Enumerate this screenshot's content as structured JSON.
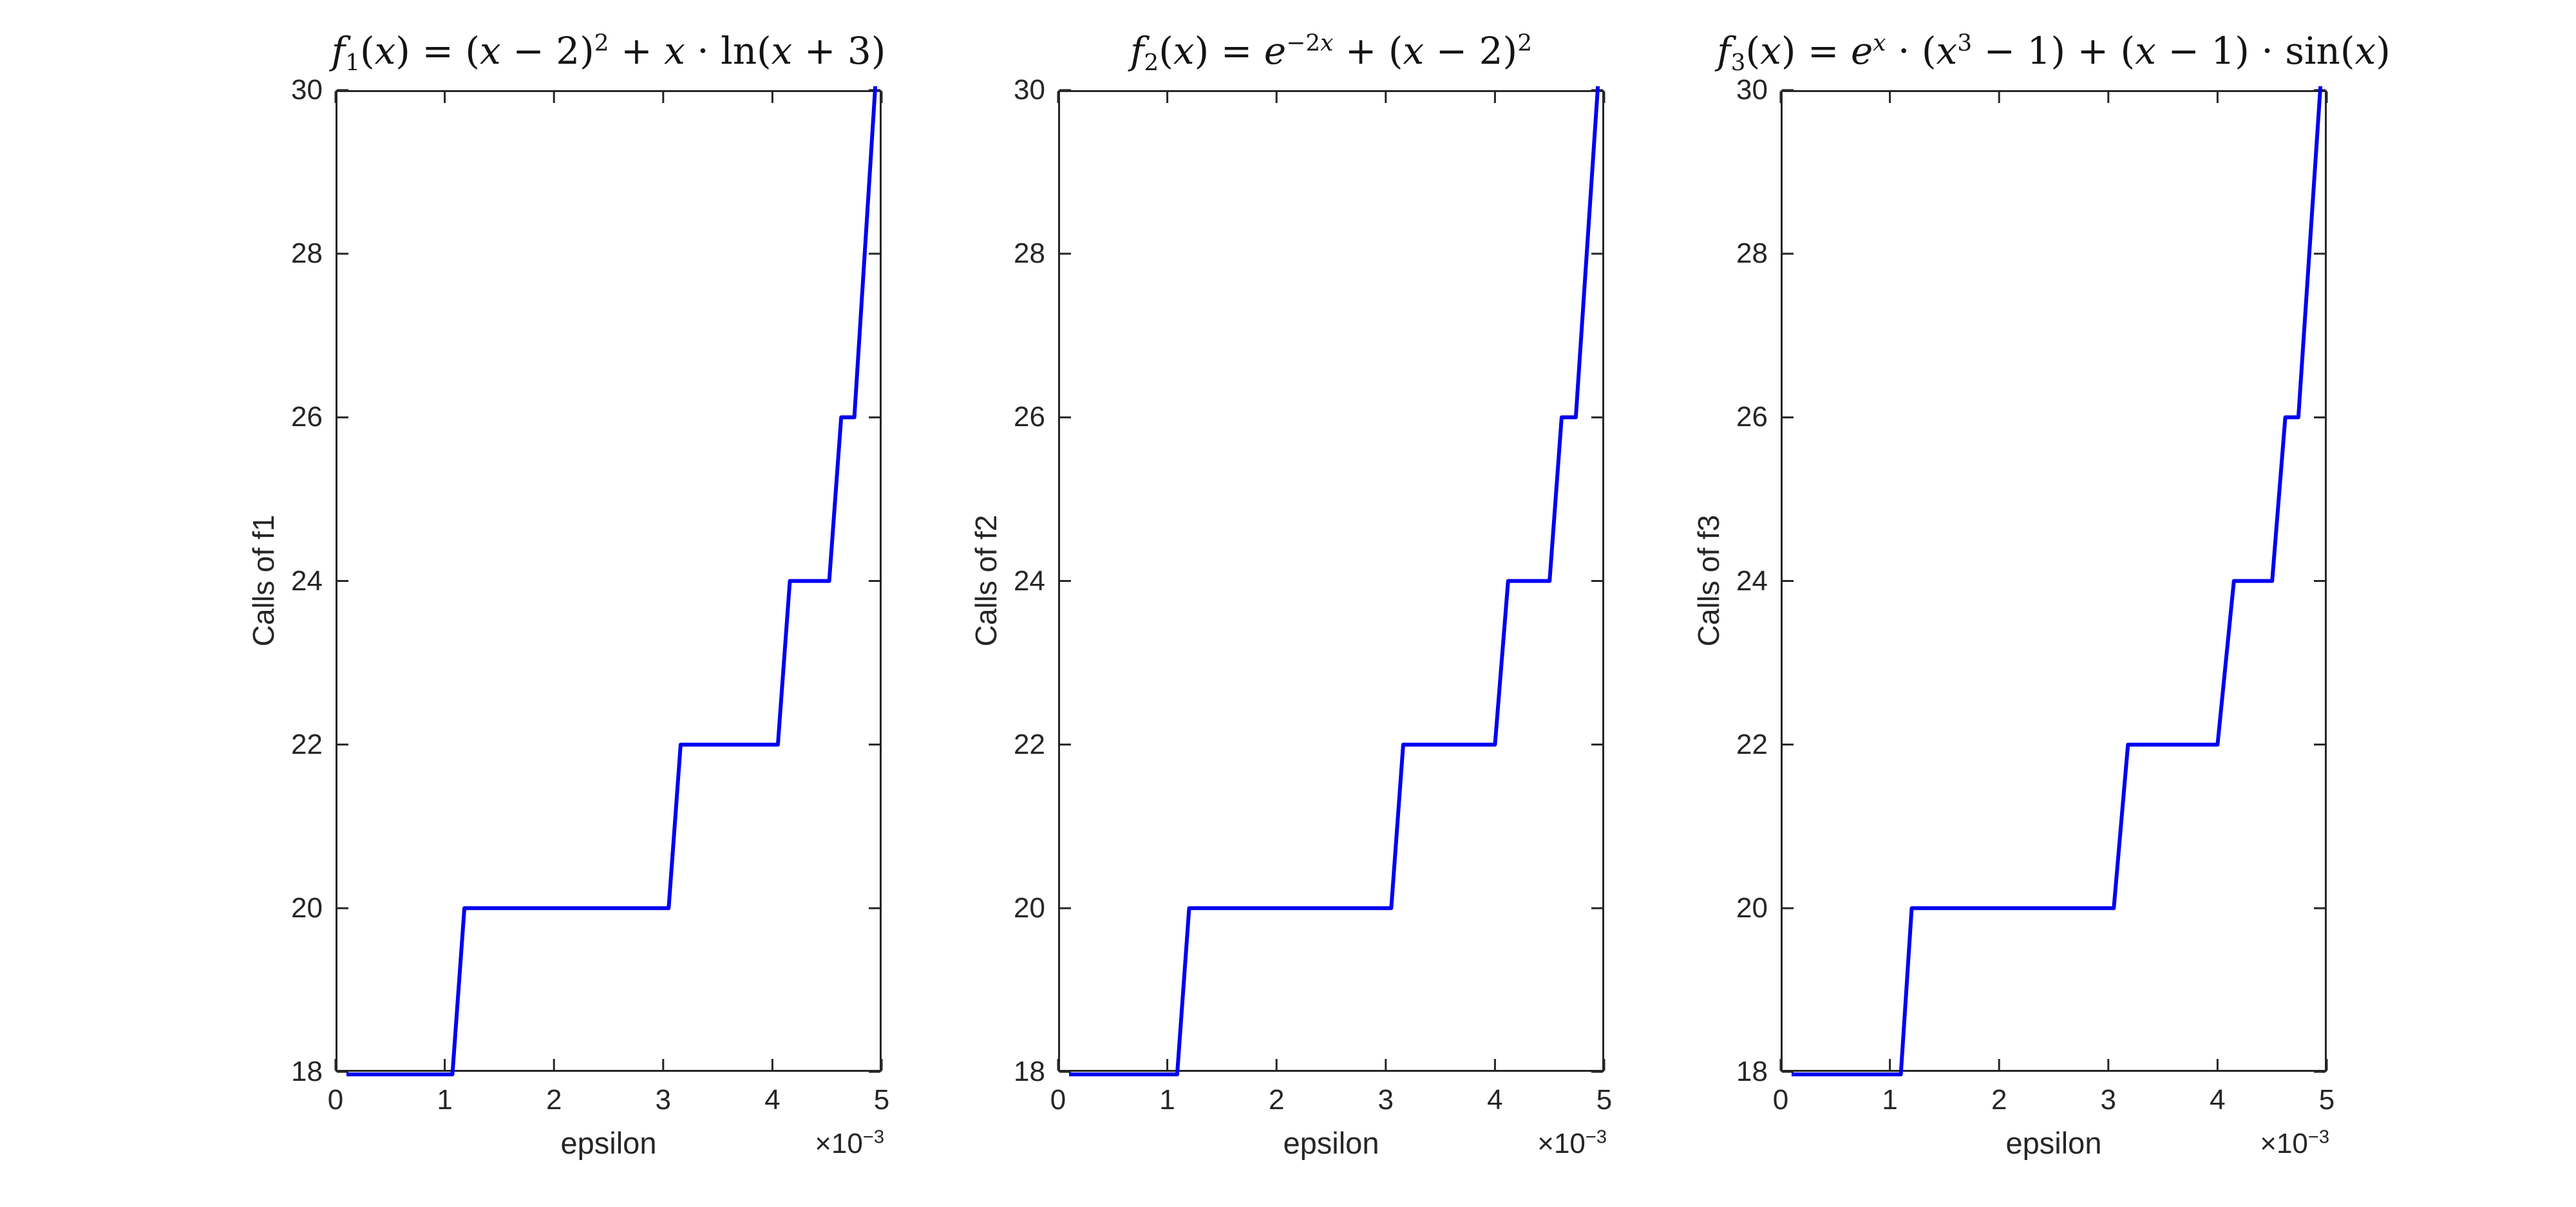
{
  "figure": {
    "background": "#ffffff",
    "axis_color": "#262626",
    "text_color": "#262626",
    "line_color": "#0000f2"
  },
  "chart_data": [
    {
      "type": "line",
      "title": "f_1(x) = (x − 2)^2 + x · ln(x + 3)",
      "xlabel": "epsilon",
      "ylabel": "Calls of f1",
      "x_offset_label": "×10^{−3}",
      "x_unit": "1e-3",
      "xlim": [
        0,
        5
      ],
      "ylim": [
        18,
        30
      ],
      "xticks": [
        0,
        1,
        2,
        3,
        4,
        5
      ],
      "yticks": [
        18,
        20,
        22,
        24,
        26,
        28,
        30
      ],
      "grid": false,
      "line_color": "#0000f2",
      "points": [
        [
          0.1,
          18
        ],
        [
          1.07,
          18
        ],
        [
          1.18,
          20
        ],
        [
          3.05,
          20
        ],
        [
          3.16,
          22
        ],
        [
          4.05,
          22
        ],
        [
          4.16,
          24
        ],
        [
          4.52,
          24
        ],
        [
          4.63,
          26
        ],
        [
          4.75,
          26
        ],
        [
          4.94,
          30
        ],
        [
          4.97,
          30.9
        ]
      ]
    },
    {
      "type": "line",
      "title": "f_2(x) = e^{−2x} + (x − 2)^2",
      "xlabel": "epsilon",
      "ylabel": "Calls of f2",
      "x_offset_label": "×10^{−3}",
      "x_unit": "1e-3",
      "xlim": [
        0,
        5
      ],
      "ylim": [
        18,
        30
      ],
      "xticks": [
        0,
        1,
        2,
        3,
        4,
        5
      ],
      "yticks": [
        18,
        20,
        22,
        24,
        26,
        28,
        30
      ],
      "grid": false,
      "line_color": "#0000f2",
      "points": [
        [
          0.1,
          18
        ],
        [
          1.09,
          18
        ],
        [
          1.2,
          20
        ],
        [
          3.05,
          20
        ],
        [
          3.16,
          22
        ],
        [
          4.0,
          22
        ],
        [
          4.12,
          24
        ],
        [
          4.5,
          24
        ],
        [
          4.61,
          26
        ],
        [
          4.74,
          26
        ],
        [
          4.94,
          30
        ],
        [
          4.97,
          30.9
        ]
      ]
    },
    {
      "type": "line",
      "title": "f_3(x) = e^x · (x^3 − 1) + (x − 1) · sin(x)",
      "xlabel": "epsilon",
      "ylabel": "Calls of f3",
      "x_offset_label": "×10^{−3}",
      "x_unit": "1e-3",
      "xlim": [
        0,
        5
      ],
      "ylim": [
        18,
        30
      ],
      "xticks": [
        0,
        1,
        2,
        3,
        4,
        5
      ],
      "yticks": [
        18,
        20,
        22,
        24,
        26,
        28,
        30
      ],
      "grid": false,
      "line_color": "#0000f2",
      "points": [
        [
          0.1,
          18
        ],
        [
          1.1,
          18
        ],
        [
          1.2,
          20
        ],
        [
          3.05,
          20
        ],
        [
          3.18,
          22
        ],
        [
          4.0,
          22
        ],
        [
          4.15,
          24
        ],
        [
          4.5,
          24
        ],
        [
          4.62,
          26
        ],
        [
          4.74,
          26
        ],
        [
          4.94,
          30
        ],
        [
          4.97,
          30.9
        ]
      ]
    }
  ]
}
